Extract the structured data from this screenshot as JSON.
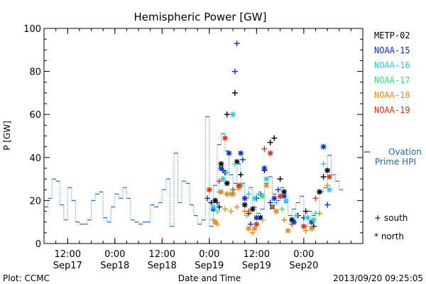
{
  "chart_data": {
    "type": "scatter",
    "title": "Hemispheric Power [GW]",
    "xlabel": "Date and Time",
    "ylabel": "P [GW]",
    "ylim": [
      0,
      100
    ],
    "xlim": [
      "2013-09-17 06:00",
      "2013-09-20 15:00"
    ],
    "y_ticks": [
      "0",
      "20",
      "40",
      "60",
      "80",
      "100"
    ],
    "x_ticks": [
      {
        "time": "12:00",
        "date": "Sep17"
      },
      {
        "time": "0:00",
        "date": "Sep18"
      },
      {
        "time": "12:00",
        "date": "Sep18"
      },
      {
        "time": "0:00",
        "date": "Sep19"
      },
      {
        "time": "12:00",
        "date": "Sep19"
      },
      {
        "time": "0:00",
        "date": "Sep20"
      }
    ],
    "grid": false,
    "legend_position": "right",
    "series": [
      {
        "name": "Ovation Prime HPI",
        "color": "#1a66cc",
        "kind": "step",
        "points": [
          [
            "2013-09-17 06:00",
            17
          ],
          [
            "2013-09-17 07:00",
            21
          ],
          [
            "2013-09-17 08:00",
            30
          ],
          [
            "2013-09-17 09:00",
            29
          ],
          [
            "2013-09-17 10:00",
            18
          ],
          [
            "2013-09-17 11:00",
            11
          ],
          [
            "2013-09-17 12:00",
            26
          ],
          [
            "2013-09-17 13:00",
            20
          ],
          [
            "2013-09-17 14:00",
            10
          ],
          [
            "2013-09-17 15:00",
            9
          ],
          [
            "2013-09-17 17:00",
            11
          ],
          [
            "2013-09-17 18:00",
            20
          ],
          [
            "2013-09-17 19:00",
            23
          ],
          [
            "2013-09-17 20:00",
            24
          ],
          [
            "2013-09-17 21:00",
            12
          ],
          [
            "2013-09-17 22:00",
            10
          ],
          [
            "2013-09-17 23:00",
            17
          ],
          [
            "2013-09-18 00:00",
            23
          ],
          [
            "2013-09-18 01:00",
            21
          ],
          [
            "2013-09-18 02:00",
            26
          ],
          [
            "2013-09-18 03:00",
            21
          ],
          [
            "2013-09-18 04:00",
            11
          ],
          [
            "2013-09-18 05:00",
            10
          ],
          [
            "2013-09-18 06:00",
            9
          ],
          [
            "2013-09-18 07:00",
            10
          ],
          [
            "2013-09-18 08:00",
            10
          ],
          [
            "2013-09-18 09:00",
            18
          ],
          [
            "2013-09-18 10:00",
            17
          ],
          [
            "2013-09-18 11:00",
            19
          ],
          [
            "2013-09-18 12:00",
            25
          ],
          [
            "2013-09-18 13:00",
            30
          ],
          [
            "2013-09-18 14:00",
            8
          ],
          [
            "2013-09-18 15:00",
            42
          ],
          [
            "2013-09-18 16:00",
            19
          ],
          [
            "2013-09-18 17:00",
            29
          ],
          [
            "2013-09-18 18:00",
            28
          ],
          [
            "2013-09-18 19:00",
            18
          ],
          [
            "2013-09-18 20:00",
            13
          ],
          [
            "2013-09-18 21:00",
            9
          ],
          [
            "2013-09-18 22:00",
            11
          ],
          [
            "2013-09-18 23:00",
            59
          ],
          [
            "2013-09-19 00:00",
            8
          ],
          [
            "2013-09-19 01:00",
            27
          ],
          [
            "2013-09-19 02:00",
            46
          ],
          [
            "2013-09-19 03:00",
            51
          ],
          [
            "2013-09-19 04:00",
            43
          ],
          [
            "2013-09-19 05:00",
            32
          ],
          [
            "2013-09-19 06:00",
            28
          ],
          [
            "2013-09-19 07:00",
            37
          ],
          [
            "2013-09-19 08:00",
            28
          ],
          [
            "2013-09-19 09:00",
            21
          ],
          [
            "2013-09-19 10:00",
            26
          ],
          [
            "2013-09-19 11:00",
            17
          ],
          [
            "2013-09-19 12:00",
            14
          ],
          [
            "2013-09-19 13:00",
            16
          ],
          [
            "2013-09-19 14:00",
            28
          ],
          [
            "2013-09-19 15:00",
            31
          ],
          [
            "2013-09-19 16:00",
            23
          ],
          [
            "2013-09-19 17:00",
            20
          ],
          [
            "2013-09-19 18:00",
            26
          ],
          [
            "2013-09-19 19:00",
            19
          ],
          [
            "2013-09-19 20:00",
            13
          ],
          [
            "2013-09-19 21:00",
            16
          ],
          [
            "2013-09-19 22:00",
            19
          ],
          [
            "2013-09-19 23:00",
            22
          ],
          [
            "2013-09-20 00:00",
            8
          ],
          [
            "2013-09-20 01:00",
            15
          ],
          [
            "2013-09-20 02:00",
            13
          ],
          [
            "2013-09-20 03:00",
            14
          ],
          [
            "2013-09-20 04:00",
            24
          ],
          [
            "2013-09-20 05:00",
            26
          ],
          [
            "2013-09-20 06:00",
            41
          ],
          [
            "2013-09-20 07:00",
            32
          ],
          [
            "2013-09-20 08:00",
            29
          ],
          [
            "2013-09-20 09:00",
            25
          ]
        ]
      },
      {
        "name": "METP-02",
        "color": "#000000",
        "points": [
          [
            "2013-09-19 00:30",
            19,
            "south"
          ],
          [
            "2013-09-19 01:30",
            20,
            "north"
          ],
          [
            "2013-09-19 02:30",
            17,
            "south"
          ],
          [
            "2013-09-19 03:00",
            37,
            "north"
          ],
          [
            "2013-09-19 04:00",
            33,
            "south"
          ],
          [
            "2013-09-19 04:30",
            28,
            "north"
          ],
          [
            "2013-09-19 04:30",
            60,
            "south"
          ],
          [
            "2013-09-19 06:30",
            70,
            "south"
          ],
          [
            "2013-09-19 07:00",
            38,
            "north"
          ],
          [
            "2013-09-19 08:00",
            32,
            "south"
          ],
          [
            "2013-09-19 09:00",
            18,
            "north"
          ],
          [
            "2013-09-19 10:00",
            14,
            "south"
          ],
          [
            "2013-09-19 11:00",
            16,
            "north"
          ],
          [
            "2013-09-19 12:00",
            21,
            "south"
          ],
          [
            "2013-09-19 13:00",
            12,
            "north"
          ],
          [
            "2013-09-19 14:00",
            34,
            "south"
          ],
          [
            "2013-09-19 15:30",
            47,
            "south"
          ],
          [
            "2013-09-19 16:00",
            17,
            "north"
          ],
          [
            "2013-09-19 16:30",
            49,
            "south"
          ],
          [
            "2013-09-19 18:00",
            30,
            "south"
          ],
          [
            "2013-09-19 19:00",
            24,
            "north"
          ],
          [
            "2013-09-19 21:00",
            11,
            "north"
          ],
          [
            "2013-09-19 22:30",
            13,
            "south"
          ],
          [
            "2013-09-20 00:30",
            15,
            "south"
          ],
          [
            "2013-09-20 02:30",
            8,
            "south"
          ],
          [
            "2013-09-20 04:00",
            24,
            "north"
          ],
          [
            "2013-09-20 05:00",
            31,
            "south"
          ],
          [
            "2013-09-20 06:00",
            34,
            "north"
          ]
        ]
      },
      {
        "name": "NOAA-15",
        "color": "#0033cc",
        "points": [
          [
            "2013-09-18 23:30",
            21,
            "south"
          ],
          [
            "2013-09-19 01:00",
            16,
            "north"
          ],
          [
            "2013-09-19 02:00",
            19,
            "south"
          ],
          [
            "2013-09-19 03:00",
            35,
            "north"
          ],
          [
            "2013-09-19 03:30",
            34,
            "south"
          ],
          [
            "2013-09-19 05:00",
            42,
            "north"
          ],
          [
            "2013-09-19 06:30",
            80,
            "south"
          ],
          [
            "2013-09-19 07:00",
            93,
            "south"
          ],
          [
            "2013-09-19 08:00",
            42,
            "north"
          ],
          [
            "2013-09-19 08:30",
            39,
            "south"
          ],
          [
            "2013-09-19 09:00",
            21,
            "north"
          ],
          [
            "2013-09-19 10:30",
            9,
            "south"
          ],
          [
            "2013-09-19 12:00",
            12,
            "north"
          ],
          [
            "2013-09-19 13:00",
            23,
            "south"
          ],
          [
            "2013-09-19 14:00",
            35,
            "north"
          ],
          [
            "2013-09-19 15:30",
            19,
            "south"
          ],
          [
            "2013-09-19 16:30",
            21,
            "north"
          ],
          [
            "2013-09-19 17:30",
            25,
            "south"
          ],
          [
            "2013-09-19 19:00",
            22,
            "north"
          ],
          [
            "2013-09-19 21:30",
            10,
            "north"
          ],
          [
            "2013-09-20 00:00",
            12,
            "south"
          ],
          [
            "2013-09-20 02:00",
            10,
            "north"
          ],
          [
            "2013-09-20 05:00",
            45,
            "north"
          ],
          [
            "2013-09-20 06:00",
            18,
            "south"
          ]
        ]
      },
      {
        "name": "NOAA-16",
        "color": "#22ccee",
        "points": [
          [
            "2013-09-19 01:00",
            17,
            "north"
          ],
          [
            "2013-09-19 02:30",
            24,
            "south"
          ],
          [
            "2013-09-19 03:30",
            30,
            "north"
          ],
          [
            "2013-09-19 04:30",
            33,
            "south"
          ],
          [
            "2013-09-19 06:00",
            60,
            "north"
          ],
          [
            "2013-09-19 06:30",
            37,
            "south"
          ],
          [
            "2013-09-19 08:00",
            27,
            "north"
          ],
          [
            "2013-09-19 10:00",
            23,
            "south"
          ],
          [
            "2013-09-19 11:30",
            21,
            "north"
          ],
          [
            "2013-09-19 12:30",
            23,
            "south"
          ],
          [
            "2013-09-19 14:30",
            30,
            "north"
          ],
          [
            "2013-09-19 17:00",
            19,
            "south"
          ],
          [
            "2013-09-19 19:30",
            20,
            "north"
          ],
          [
            "2013-09-19 22:00",
            13,
            "south"
          ],
          [
            "2013-09-20 01:00",
            12,
            "north"
          ],
          [
            "2013-09-20 03:00",
            14,
            "south"
          ],
          [
            "2013-09-20 05:00",
            37,
            "south"
          ],
          [
            "2013-09-20 06:30",
            25,
            "north"
          ]
        ]
      },
      {
        "name": "NOAA-17",
        "color": "#33dd77",
        "points": [
          [
            "2013-09-19 02:00",
            15,
            "south"
          ],
          [
            "2013-09-19 05:30",
            23,
            "north"
          ],
          [
            "2013-09-19 09:30",
            13,
            "south"
          ],
          [
            "2013-09-19 13:30",
            22,
            "north"
          ],
          [
            "2013-09-19 18:30",
            16,
            "south"
          ],
          [
            "2013-09-20 02:30",
            11,
            "north"
          ]
        ]
      },
      {
        "name": "NOAA-18",
        "color": "#ee8811",
        "points": [
          [
            "2013-09-19 01:00",
            11,
            "south"
          ],
          [
            "2013-09-19 01:30",
            10,
            "north"
          ],
          [
            "2013-09-19 02:00",
            9,
            "south"
          ],
          [
            "2013-09-19 03:00",
            24,
            "north"
          ],
          [
            "2013-09-19 04:00",
            16,
            "south"
          ],
          [
            "2013-09-19 04:30",
            23,
            "north"
          ],
          [
            "2013-09-19 05:30",
            15,
            "south"
          ],
          [
            "2013-09-19 06:00",
            23,
            "north"
          ],
          [
            "2013-09-19 07:00",
            17,
            "south"
          ],
          [
            "2013-09-19 07:30",
            26,
            "north"
          ],
          [
            "2013-09-19 09:00",
            15,
            "south"
          ],
          [
            "2013-09-19 10:00",
            7,
            "north"
          ],
          [
            "2013-09-19 11:00",
            5,
            "south"
          ],
          [
            "2013-09-19 11:30",
            7,
            "north"
          ],
          [
            "2013-09-19 13:30",
            11,
            "south"
          ],
          [
            "2013-09-19 14:30",
            27,
            "north"
          ],
          [
            "2013-09-19 16:00",
            17,
            "south"
          ],
          [
            "2013-09-19 17:00",
            15,
            "north"
          ],
          [
            "2013-09-19 19:00",
            11,
            "south"
          ],
          [
            "2013-09-19 20:00",
            6,
            "north"
          ],
          [
            "2013-09-20 00:30",
            6,
            "south"
          ],
          [
            "2013-09-20 02:00",
            7,
            "north"
          ],
          [
            "2013-09-20 04:00",
            14,
            "south"
          ],
          [
            "2013-09-20 06:00",
            27,
            "south"
          ]
        ]
      },
      {
        "name": "NOAA-19",
        "color": "#dd3311",
        "points": [
          [
            "2013-09-19 00:00",
            25,
            "north"
          ],
          [
            "2013-09-19 02:30",
            29,
            "south"
          ],
          [
            "2013-09-19 04:00",
            49,
            "north"
          ],
          [
            "2013-09-19 06:00",
            25,
            "south"
          ],
          [
            "2013-09-19 07:30",
            27,
            "north"
          ],
          [
            "2013-09-19 10:00",
            15,
            "south"
          ],
          [
            "2013-09-19 12:00",
            9,
            "north"
          ],
          [
            "2013-09-19 14:00",
            44,
            "south"
          ],
          [
            "2013-09-19 15:30",
            42,
            "north"
          ],
          [
            "2013-09-19 18:00",
            22,
            "north"
          ],
          [
            "2013-09-19 21:00",
            9,
            "south"
          ],
          [
            "2013-09-20 00:00",
            8,
            "north"
          ],
          [
            "2013-09-20 03:00",
            21,
            "south"
          ],
          [
            "2013-09-20 06:30",
            31,
            "north"
          ]
        ]
      }
    ],
    "marker_legend": [
      {
        "symbol": "+",
        "label": "south"
      },
      {
        "symbol": "*",
        "label": "north"
      }
    ]
  },
  "footer": {
    "plot_credit": "Plot: CCMC",
    "timestamp": "2013/09/20 09:25:05"
  }
}
